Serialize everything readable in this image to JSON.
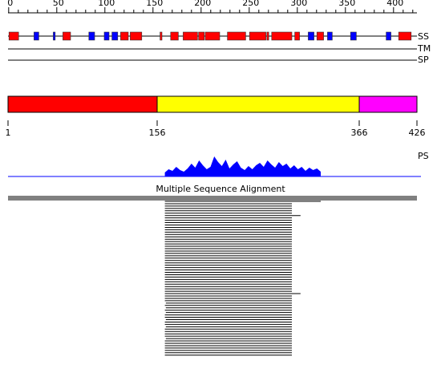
{
  "ruler": {
    "length": 426,
    "ticks": [
      0,
      50,
      100,
      150,
      200,
      250,
      300,
      350,
      400
    ],
    "minor_ticks": [
      10,
      20,
      30,
      40,
      60,
      70,
      80,
      90,
      110,
      120,
      130,
      140,
      160,
      170,
      180,
      190,
      210,
      220,
      230,
      240,
      260,
      270,
      280,
      290,
      310,
      320,
      330,
      340,
      360,
      370,
      380,
      390,
      410,
      420
    ]
  },
  "tracks": {
    "ss_label": "SS",
    "tm_label": "TM",
    "sp_label": "SP",
    "helix_color": "#ff0000",
    "strand_color": "#0000ff",
    "helices": [
      [
        2,
        12
      ],
      [
        58,
        66
      ],
      [
        118,
        126
      ],
      [
        128,
        140
      ],
      [
        159,
        161
      ],
      [
        170,
        178
      ],
      [
        183,
        198
      ],
      [
        199,
        205
      ],
      [
        206,
        221
      ],
      [
        229,
        248
      ],
      [
        252,
        269
      ],
      [
        270,
        272
      ],
      [
        275,
        296
      ],
      [
        299,
        304
      ],
      [
        322,
        329
      ],
      [
        407,
        420
      ]
    ],
    "strands": [
      [
        28,
        33
      ],
      [
        48,
        50
      ],
      [
        85,
        91
      ],
      [
        101,
        106
      ],
      [
        109,
        115
      ],
      [
        313,
        319
      ],
      [
        333,
        338
      ],
      [
        357,
        363
      ],
      [
        394,
        399
      ]
    ]
  },
  "domains": {
    "segments": [
      {
        "start": 1,
        "end": 156,
        "color": "#ff0000"
      },
      {
        "start": 156,
        "end": 366,
        "color": "#ffff00"
      },
      {
        "start": 366,
        "end": 426,
        "color": "#ff00ff"
      }
    ],
    "boundaries": [
      1,
      156,
      366,
      426
    ]
  },
  "profile": {
    "label": "PS",
    "start": 164,
    "end": 326,
    "color": "#0000ff",
    "values": [
      5,
      9,
      7,
      12,
      8,
      6,
      10,
      16,
      11,
      20,
      14,
      9,
      12,
      25,
      18,
      13,
      21,
      10,
      15,
      19,
      11,
      8,
      13,
      9,
      14,
      17,
      12,
      20,
      15,
      11,
      18,
      13,
      16,
      10,
      14,
      9,
      12,
      7,
      11,
      8,
      10,
      6
    ]
  },
  "msa": {
    "title": "Multiple Sequence Alignment",
    "rows": [
      [
        1,
        426
      ],
      [
        1,
        426
      ],
      [
        1,
        426
      ],
      [
        164,
        326
      ],
      [
        164,
        296
      ],
      [
        164,
        296
      ],
      [
        164,
        296
      ],
      [
        164,
        296
      ],
      [
        164,
        296
      ],
      [
        164,
        305
      ],
      [
        164,
        296
      ],
      [
        164,
        296
      ],
      [
        164,
        296
      ],
      [
        164,
        296
      ],
      [
        164,
        296
      ],
      [
        164,
        296
      ],
      [
        164,
        296
      ],
      [
        164,
        296
      ],
      [
        164,
        296
      ],
      [
        164,
        296
      ],
      [
        164,
        296
      ],
      [
        164,
        296
      ],
      [
        164,
        296
      ],
      [
        164,
        296
      ],
      [
        164,
        296
      ],
      [
        164,
        296
      ],
      [
        164,
        296
      ],
      [
        164,
        296
      ],
      [
        164,
        296
      ],
      [
        164,
        296
      ],
      [
        164,
        296
      ],
      [
        164,
        296
      ],
      [
        164,
        296
      ],
      [
        164,
        296
      ],
      [
        164,
        296
      ],
      [
        164,
        296
      ],
      [
        164,
        296
      ],
      [
        164,
        296
      ],
      [
        164,
        296
      ],
      [
        164,
        296
      ],
      [
        164,
        296
      ],
      [
        164,
        296
      ],
      [
        164,
        305
      ],
      [
        164,
        296
      ],
      [
        164,
        296
      ],
      [
        164,
        296
      ],
      [
        165,
        296
      ],
      [
        164,
        296
      ],
      [
        165,
        296
      ],
      [
        164,
        296
      ],
      [
        165,
        296
      ],
      [
        164,
        296
      ],
      [
        164,
        296
      ],
      [
        165,
        296
      ],
      [
        164,
        296
      ],
      [
        164,
        296
      ],
      [
        165,
        296
      ],
      [
        164,
        296
      ],
      [
        164,
        296
      ],
      [
        164,
        296
      ],
      [
        164,
        296
      ],
      [
        165,
        296
      ],
      [
        164,
        296
      ],
      [
        164,
        296
      ],
      [
        164,
        296
      ],
      [
        164,
        296
      ],
      [
        164,
        296
      ],
      [
        164,
        296
      ],
      [
        164,
        296
      ]
    ]
  }
}
